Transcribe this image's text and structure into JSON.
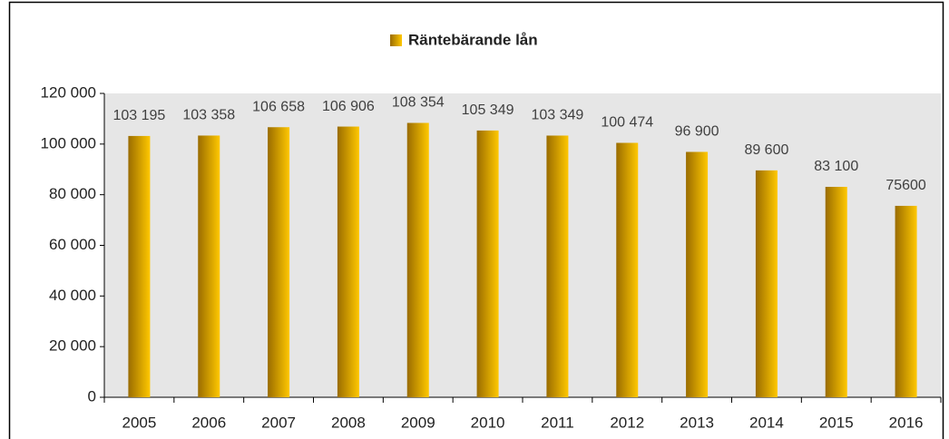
{
  "chart_data": {
    "type": "bar",
    "legend_label": "Räntebärande lån",
    "categories": [
      "2005",
      "2006",
      "2007",
      "2008",
      "2009",
      "2010",
      "2011",
      "2012",
      "2013",
      "2014",
      "2015",
      "2016"
    ],
    "series": [
      {
        "name": "Räntebärande lån",
        "color": "#ffc800",
        "values": [
          103195,
          103358,
          106658,
          106906,
          108354,
          105349,
          103349,
          100474,
          96900,
          89600,
          83100,
          75600
        ],
        "value_labels": [
          "103 195",
          "103 358",
          "106 658",
          "106 906",
          "108 354",
          "105 349",
          "103 349",
          "100 474",
          "96 900",
          "89 600",
          "83 100",
          "75600"
        ]
      }
    ],
    "ylim": [
      0,
      120000
    ],
    "yticks": [
      {
        "value": 0,
        "label": "0"
      },
      {
        "value": 20000,
        "label": "20 000"
      },
      {
        "value": 40000,
        "label": "40 000"
      },
      {
        "value": 60000,
        "label": "60 000"
      },
      {
        "value": 80000,
        "label": "80 000"
      },
      {
        "value": 100000,
        "label": "100 000"
      },
      {
        "value": 120000,
        "label": "120 000"
      }
    ],
    "legend": "top"
  }
}
